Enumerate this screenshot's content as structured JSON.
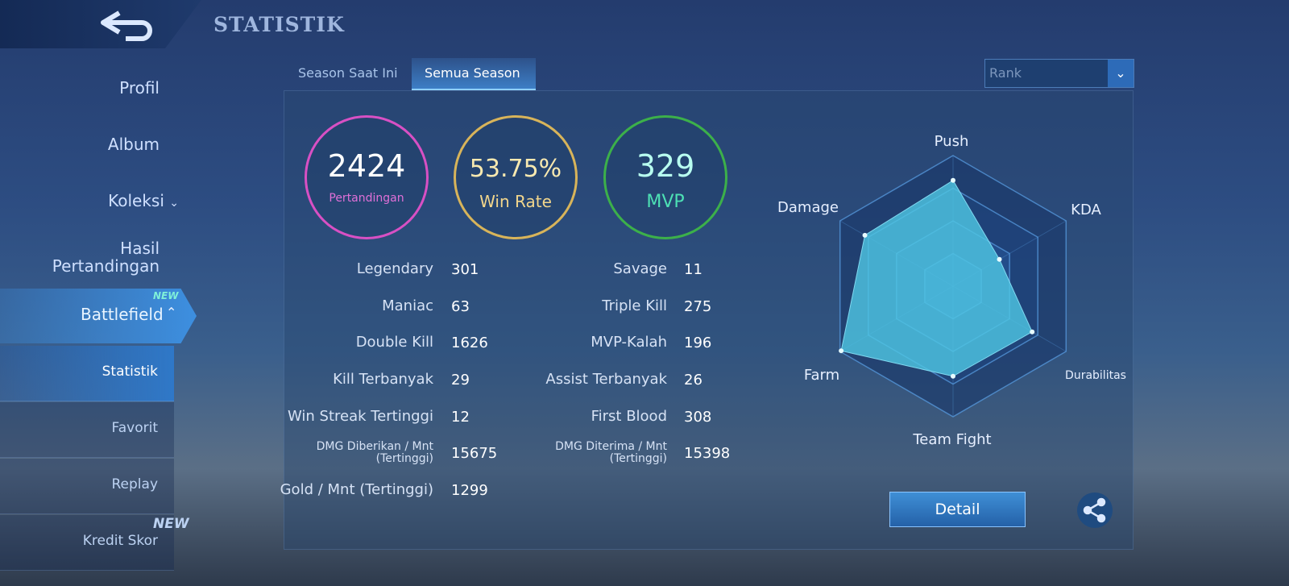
{
  "header": {
    "title": "STATISTIK"
  },
  "sidebar": {
    "items": [
      "Profil",
      "Album",
      "Koleksi",
      "Hasil Pertandingan",
      "Battlefield"
    ],
    "subitems": [
      "Statistik",
      "Favorit",
      "Replay",
      "Kredit Skor"
    ],
    "badge": "NEW"
  },
  "tabs": [
    "Season Saat Ini",
    "Semua Season"
  ],
  "dropdown": "Rank",
  "summary": [
    {
      "value": 2424,
      "label": "Pertandingan"
    },
    {
      "value": "53.75%",
      "label": "Win Rate"
    },
    {
      "value": 329,
      "label": "MVP"
    }
  ],
  "stats_left": [
    {
      "label": "Legendary",
      "value": 301
    },
    {
      "label": "Maniac",
      "value": 63
    },
    {
      "label": "Double Kill",
      "value": 1626
    },
    {
      "label": "Kill Terbanyak",
      "value": 29
    },
    {
      "label": "Win Streak Tertinggi",
      "value": 12
    },
    {
      "label": "DMG Diberikan / Mnt (Tertinggi)",
      "value": 15675
    },
    {
      "label": "Gold / Mnt (Tertinggi)",
      "value": 1299
    }
  ],
  "stats_right": [
    {
      "label": "Savage",
      "value": 11
    },
    {
      "label": "Triple Kill",
      "value": 275
    },
    {
      "label": "MVP-Kalah",
      "value": 196
    },
    {
      "label": "Assist Terbanyak",
      "value": 26
    },
    {
      "label": "First Blood",
      "value": 308
    },
    {
      "label": "DMG Diterima / Mnt (Tertinggi)",
      "value": 15398
    }
  ],
  "radar": {
    "labels": [
      "Push",
      "KDA",
      "Durabilitas",
      "Team Fight",
      "Farm",
      "Damage"
    ],
    "values": [
      81,
      41,
      70,
      69,
      99,
      78
    ],
    "rlim": [
      0,
      100
    ],
    "rticks": [
      25,
      50,
      75,
      100
    ]
  },
  "button": "Detail"
}
